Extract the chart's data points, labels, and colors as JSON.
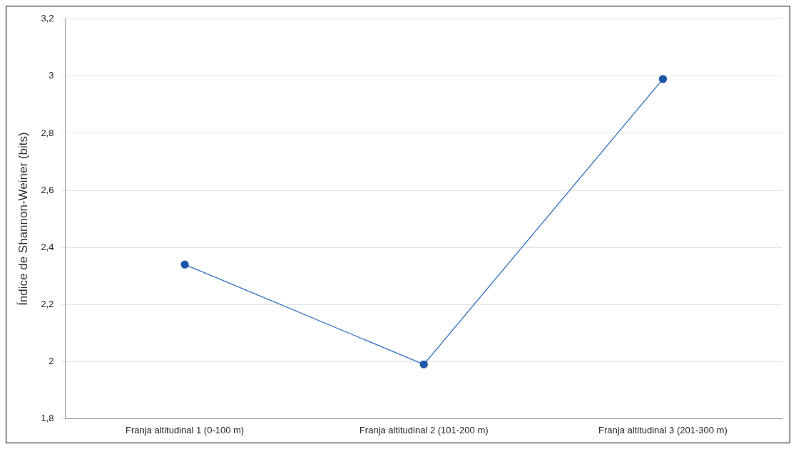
{
  "chart_data": {
    "type": "line",
    "ylabel": "Índice de Shannon-Weiner (bits)",
    "categories": [
      "Franja altitudinal 1 (0-100 m)",
      "Franja altitudinal 2 (101-200 m)",
      "Franja altitudinal 3 (201-300 m)"
    ],
    "series": [
      {
        "color": "#2f6fc0",
        "values": [
          2.34,
          1.99,
          2.99
        ]
      }
    ],
    "ylim": [
      1.8,
      3.2
    ],
    "yticks": [
      {
        "value": 1.8,
        "label": "1,8"
      },
      2,
      {
        "value": 2.2,
        "label": "2,2"
      },
      {
        "value": 2.4,
        "label": "2,4"
      },
      {
        "value": 2.6,
        "label": "2,6"
      },
      {
        "value": 2.8,
        "label": "2,8"
      },
      3,
      {
        "value": 3.2,
        "label": "3,2"
      }
    ],
    "grid": "y",
    "legend": false,
    "marker": "circle",
    "line_style": "solid"
  }
}
